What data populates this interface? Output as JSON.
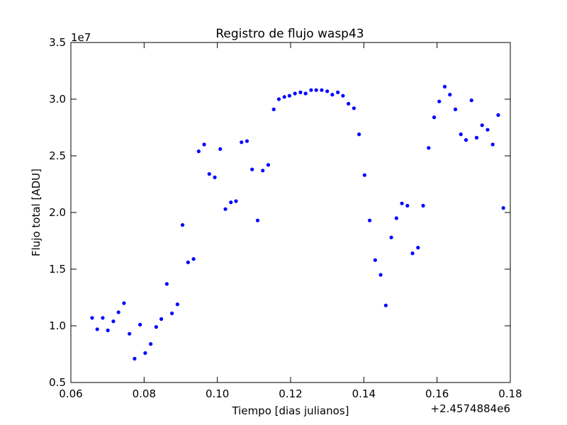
{
  "chart_data": {
    "type": "scatter",
    "title": "Registro de flujo wasp43",
    "xlabel": "Tiempo [dias julianos]",
    "ylabel": "Flujo total [ADU]",
    "x_offset_label": "+2.4574884e6",
    "y_exponent_label": "1e7",
    "xlim": [
      0.06,
      0.18
    ],
    "ylim": [
      0.5,
      3.5
    ],
    "x_ticks": [
      "0.06",
      "0.08",
      "0.10",
      "0.12",
      "0.14",
      "0.16",
      "0.18"
    ],
    "y_ticks": [
      "0.5",
      "1.0",
      "1.5",
      "2.0",
      "2.5",
      "3.0",
      "3.5"
    ],
    "grid": false,
    "marker_color": "#0000ff",
    "points": [
      {
        "x": 0.0658,
        "y": 1.07
      },
      {
        "x": 0.0672,
        "y": 0.97
      },
      {
        "x": 0.0687,
        "y": 1.07
      },
      {
        "x": 0.0701,
        "y": 0.96
      },
      {
        "x": 0.0716,
        "y": 1.04
      },
      {
        "x": 0.073,
        "y": 1.12
      },
      {
        "x": 0.0745,
        "y": 1.2
      },
      {
        "x": 0.076,
        "y": 0.93
      },
      {
        "x": 0.0774,
        "y": 0.71
      },
      {
        "x": 0.0789,
        "y": 1.01
      },
      {
        "x": 0.0803,
        "y": 0.76
      },
      {
        "x": 0.0818,
        "y": 0.84
      },
      {
        "x": 0.0833,
        "y": 0.99
      },
      {
        "x": 0.0847,
        "y": 1.06
      },
      {
        "x": 0.0862,
        "y": 1.37
      },
      {
        "x": 0.0876,
        "y": 1.11
      },
      {
        "x": 0.0891,
        "y": 1.19
      },
      {
        "x": 0.0905,
        "y": 1.89
      },
      {
        "x": 0.092,
        "y": 1.56
      },
      {
        "x": 0.0935,
        "y": 1.59
      },
      {
        "x": 0.0949,
        "y": 2.54
      },
      {
        "x": 0.0964,
        "y": 2.6
      },
      {
        "x": 0.0978,
        "y": 2.34
      },
      {
        "x": 0.0993,
        "y": 2.31
      },
      {
        "x": 0.1008,
        "y": 2.56
      },
      {
        "x": 0.1022,
        "y": 2.03
      },
      {
        "x": 0.1037,
        "y": 2.09
      },
      {
        "x": 0.1051,
        "y": 2.1
      },
      {
        "x": 0.1066,
        "y": 2.62
      },
      {
        "x": 0.1081,
        "y": 2.63
      },
      {
        "x": 0.1095,
        "y": 2.38
      },
      {
        "x": 0.111,
        "y": 1.93
      },
      {
        "x": 0.1124,
        "y": 2.37
      },
      {
        "x": 0.1139,
        "y": 2.42
      },
      {
        "x": 0.1154,
        "y": 2.91
      },
      {
        "x": 0.1168,
        "y": 3.0
      },
      {
        "x": 0.1183,
        "y": 3.02
      },
      {
        "x": 0.1197,
        "y": 3.03
      },
      {
        "x": 0.1212,
        "y": 3.05
      },
      {
        "x": 0.1227,
        "y": 3.06
      },
      {
        "x": 0.1241,
        "y": 3.05
      },
      {
        "x": 0.1256,
        "y": 3.08
      },
      {
        "x": 0.127,
        "y": 3.08
      },
      {
        "x": 0.1285,
        "y": 3.08
      },
      {
        "x": 0.13,
        "y": 3.07
      },
      {
        "x": 0.1314,
        "y": 3.04
      },
      {
        "x": 0.1329,
        "y": 3.06
      },
      {
        "x": 0.1343,
        "y": 3.03
      },
      {
        "x": 0.1358,
        "y": 2.96
      },
      {
        "x": 0.1373,
        "y": 2.92
      },
      {
        "x": 0.1387,
        "y": 2.69
      },
      {
        "x": 0.1402,
        "y": 2.33
      },
      {
        "x": 0.1416,
        "y": 1.93
      },
      {
        "x": 0.1431,
        "y": 1.58
      },
      {
        "x": 0.1446,
        "y": 1.45
      },
      {
        "x": 0.146,
        "y": 1.18
      },
      {
        "x": 0.1475,
        "y": 1.78
      },
      {
        "x": 0.1489,
        "y": 1.95
      },
      {
        "x": 0.1504,
        "y": 2.08
      },
      {
        "x": 0.1519,
        "y": 2.06
      },
      {
        "x": 0.1533,
        "y": 1.64
      },
      {
        "x": 0.1548,
        "y": 1.69
      },
      {
        "x": 0.1562,
        "y": 2.06
      },
      {
        "x": 0.1577,
        "y": 2.57
      },
      {
        "x": 0.1592,
        "y": 2.84
      },
      {
        "x": 0.1606,
        "y": 2.98
      },
      {
        "x": 0.1621,
        "y": 3.11
      },
      {
        "x": 0.1635,
        "y": 3.04
      },
      {
        "x": 0.165,
        "y": 2.91
      },
      {
        "x": 0.1665,
        "y": 2.69
      },
      {
        "x": 0.1679,
        "y": 2.64
      },
      {
        "x": 0.1694,
        "y": 2.99
      },
      {
        "x": 0.1708,
        "y": 2.66
      },
      {
        "x": 0.1723,
        "y": 2.77
      },
      {
        "x": 0.1738,
        "y": 2.73
      },
      {
        "x": 0.1752,
        "y": 2.6
      },
      {
        "x": 0.1767,
        "y": 2.86
      },
      {
        "x": 0.1781,
        "y": 2.04
      }
    ]
  }
}
